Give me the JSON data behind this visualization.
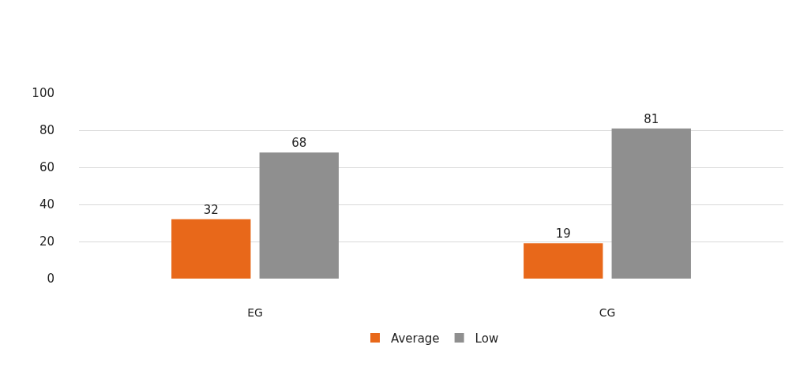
{
  "chart_data": {
    "type": "bar",
    "categories": [
      "EG",
      "CG"
    ],
    "series": [
      {
        "name": "Average",
        "color": "#e8681a",
        "values": [
          32,
          19
        ]
      },
      {
        "name": "Low",
        "color": "#8f8f8f",
        "values": [
          68,
          81
        ]
      }
    ],
    "ylim": [
      0,
      100
    ],
    "yticks": [
      0,
      20,
      40,
      60,
      80,
      100
    ],
    "grid": "y",
    "legend": "bottom",
    "data_labels": true
  }
}
